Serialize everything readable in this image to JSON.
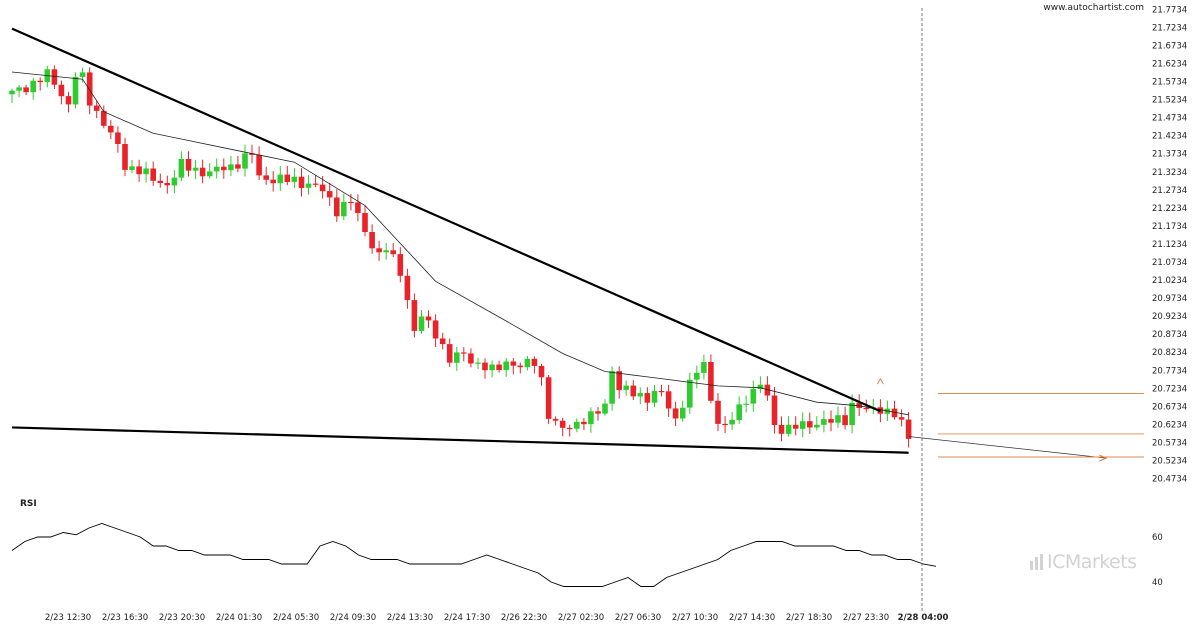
{
  "watermark": {
    "site": "www.autochartist.com",
    "broker": "ICMarkets"
  },
  "chart_data": {
    "type": "candlestick",
    "y_ticks": [
      "21.7734",
      "21.7234",
      "21.6734",
      "21.6234",
      "21.5734",
      "21.5234",
      "21.4734",
      "21.4234",
      "21.3734",
      "21.3234",
      "21.2734",
      "21.2234",
      "21.1734",
      "21.1234",
      "21.0734",
      "21.0234",
      "20.9734",
      "20.9234",
      "20.8734",
      "20.8234",
      "20.7734",
      "20.7234",
      "20.6734",
      "20.6234",
      "20.5734",
      "20.5234",
      "20.4734"
    ],
    "ylim": [
      20.45,
      21.78
    ],
    "x_ticks": [
      "2/23 12:30",
      "2/23 16:30",
      "2/23 20:30",
      "2/24 01:30",
      "2/24 05:30",
      "2/24 09:30",
      "2/24 13:30",
      "2/24 17:30",
      "2/26 22:30",
      "2/27 02:30",
      "2/27 06:30",
      "2/27 10:30",
      "2/27 14:30",
      "2/27 18:30",
      "2/27 23:30",
      "2/28 04:00"
    ],
    "current_label": "2/28 04:00",
    "close_path": [
      [
        0,
        21.54
      ],
      [
        3,
        21.57
      ],
      [
        5,
        21.59
      ],
      [
        6,
        21.57
      ],
      [
        8,
        21.51
      ],
      [
        9,
        21.59
      ],
      [
        10,
        21.58
      ],
      [
        11,
        21.52
      ],
      [
        13,
        21.46
      ],
      [
        15,
        21.39
      ],
      [
        16,
        21.34
      ],
      [
        18,
        21.33
      ],
      [
        20,
        21.3
      ],
      [
        22,
        21.29
      ],
      [
        24,
        21.34
      ],
      [
        26,
        21.33
      ],
      [
        28,
        21.32
      ],
      [
        31,
        21.34
      ],
      [
        34,
        21.37
      ],
      [
        35,
        21.31
      ],
      [
        38,
        21.3
      ],
      [
        40,
        21.3
      ],
      [
        42,
        21.29
      ],
      [
        44,
        21.27
      ],
      [
        46,
        21.22
      ],
      [
        48,
        21.24
      ],
      [
        49,
        21.2
      ],
      [
        50,
        21.16
      ],
      [
        52,
        21.09
      ],
      [
        53,
        21.11
      ],
      [
        55,
        21.05
      ],
      [
        56,
        20.97
      ],
      [
        57,
        20.88
      ],
      [
        58,
        20.92
      ],
      [
        60,
        20.88
      ],
      [
        62,
        20.8
      ],
      [
        64,
        20.82
      ],
      [
        66,
        20.79
      ],
      [
        68,
        20.77
      ],
      [
        70,
        20.8
      ],
      [
        72,
        20.78
      ],
      [
        74,
        20.8
      ],
      [
        75,
        20.75
      ],
      [
        76,
        20.65
      ],
      [
        77,
        20.62
      ],
      [
        78,
        20.61
      ],
      [
        80,
        20.63
      ],
      [
        82,
        20.64
      ],
      [
        84,
        20.68
      ],
      [
        85,
        20.78
      ],
      [
        86,
        20.72
      ],
      [
        88,
        20.71
      ],
      [
        90,
        20.7
      ],
      [
        92,
        20.71
      ],
      [
        93,
        20.67
      ],
      [
        94,
        20.64
      ],
      [
        96,
        20.73
      ],
      [
        97,
        20.77
      ],
      [
        98,
        20.79
      ],
      [
        99,
        20.7
      ],
      [
        100,
        20.63
      ],
      [
        101,
        20.61
      ],
      [
        102,
        20.64
      ],
      [
        104,
        20.7
      ],
      [
        106,
        20.73
      ],
      [
        107,
        20.7
      ],
      [
        108,
        20.62
      ],
      [
        110,
        20.61
      ],
      [
        112,
        20.62
      ],
      [
        114,
        20.63
      ],
      [
        116,
        20.63
      ],
      [
        118,
        20.64
      ],
      [
        119,
        20.68
      ],
      [
        121,
        20.66
      ],
      [
        123,
        20.67
      ],
      [
        125,
        20.65
      ],
      [
        126,
        20.62
      ],
      [
        127,
        20.59
      ]
    ],
    "sma_path": [
      [
        0,
        21.6
      ],
      [
        10,
        21.58
      ],
      [
        13,
        21.49
      ],
      [
        20,
        21.43
      ],
      [
        25,
        21.41
      ],
      [
        30,
        21.39
      ],
      [
        40,
        21.35
      ],
      [
        50,
        21.23
      ],
      [
        60,
        21.02
      ],
      [
        70,
        20.91
      ],
      [
        78,
        20.82
      ],
      [
        84,
        20.77
      ],
      [
        90,
        20.755
      ],
      [
        100,
        20.73
      ],
      [
        106,
        20.725
      ],
      [
        114,
        20.685
      ],
      [
        120,
        20.675
      ],
      [
        127,
        20.65
      ]
    ],
    "upper_trendline": {
      "from": [
        0,
        21.72
      ],
      "to": [
        123,
        20.66
      ]
    },
    "lower_trendline": {
      "from": [
        0,
        20.615
      ],
      "to": [
        127,
        20.545
      ]
    },
    "projection": {
      "from": [
        127,
        20.59
      ],
      "to": [
        155,
        20.53
      ]
    },
    "levels": [
      20.709,
      20.597,
      20.533
    ],
    "rsi": {
      "title": "RSI",
      "ticks": [
        "60",
        "40"
      ],
      "ylim": [
        32,
        72
      ],
      "values": [
        54,
        58,
        60,
        60,
        62,
        61,
        64,
        66,
        64,
        62,
        60,
        56,
        56,
        54,
        54,
        52,
        52,
        52,
        50,
        50,
        50,
        48,
        48,
        48,
        56,
        58,
        56,
        52,
        50,
        50,
        50,
        48,
        48,
        48,
        48,
        48,
        50,
        52,
        50,
        48,
        46,
        44,
        40,
        38,
        38,
        38,
        38,
        40,
        42,
        38,
        38,
        42,
        44,
        46,
        48,
        50,
        54,
        56,
        58,
        58,
        58,
        56,
        56,
        56,
        56,
        54,
        54,
        52,
        52,
        50,
        50,
        48,
        47
      ]
    }
  }
}
